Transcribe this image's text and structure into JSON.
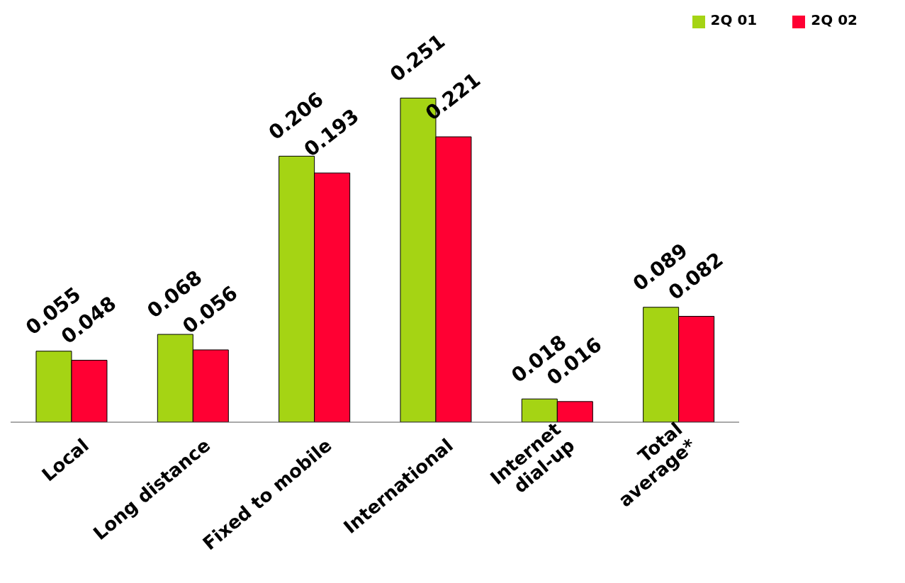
{
  "chart_data": {
    "type": "bar",
    "categories": [
      "Local",
      "Long distance",
      "Fixed to mobile",
      "International",
      "Internet\ndial-up",
      "Total\naverage*"
    ],
    "series": [
      {
        "name": "2Q 01",
        "color": "#a5d414",
        "values": [
          0.055,
          0.068,
          0.206,
          0.251,
          0.018,
          0.089
        ]
      },
      {
        "name": "2Q 02",
        "color": "#ff0033",
        "values": [
          0.048,
          0.056,
          0.193,
          0.221,
          0.016,
          0.082
        ]
      }
    ],
    "data_labels": true,
    "legend": "top right",
    "grid": false
  }
}
